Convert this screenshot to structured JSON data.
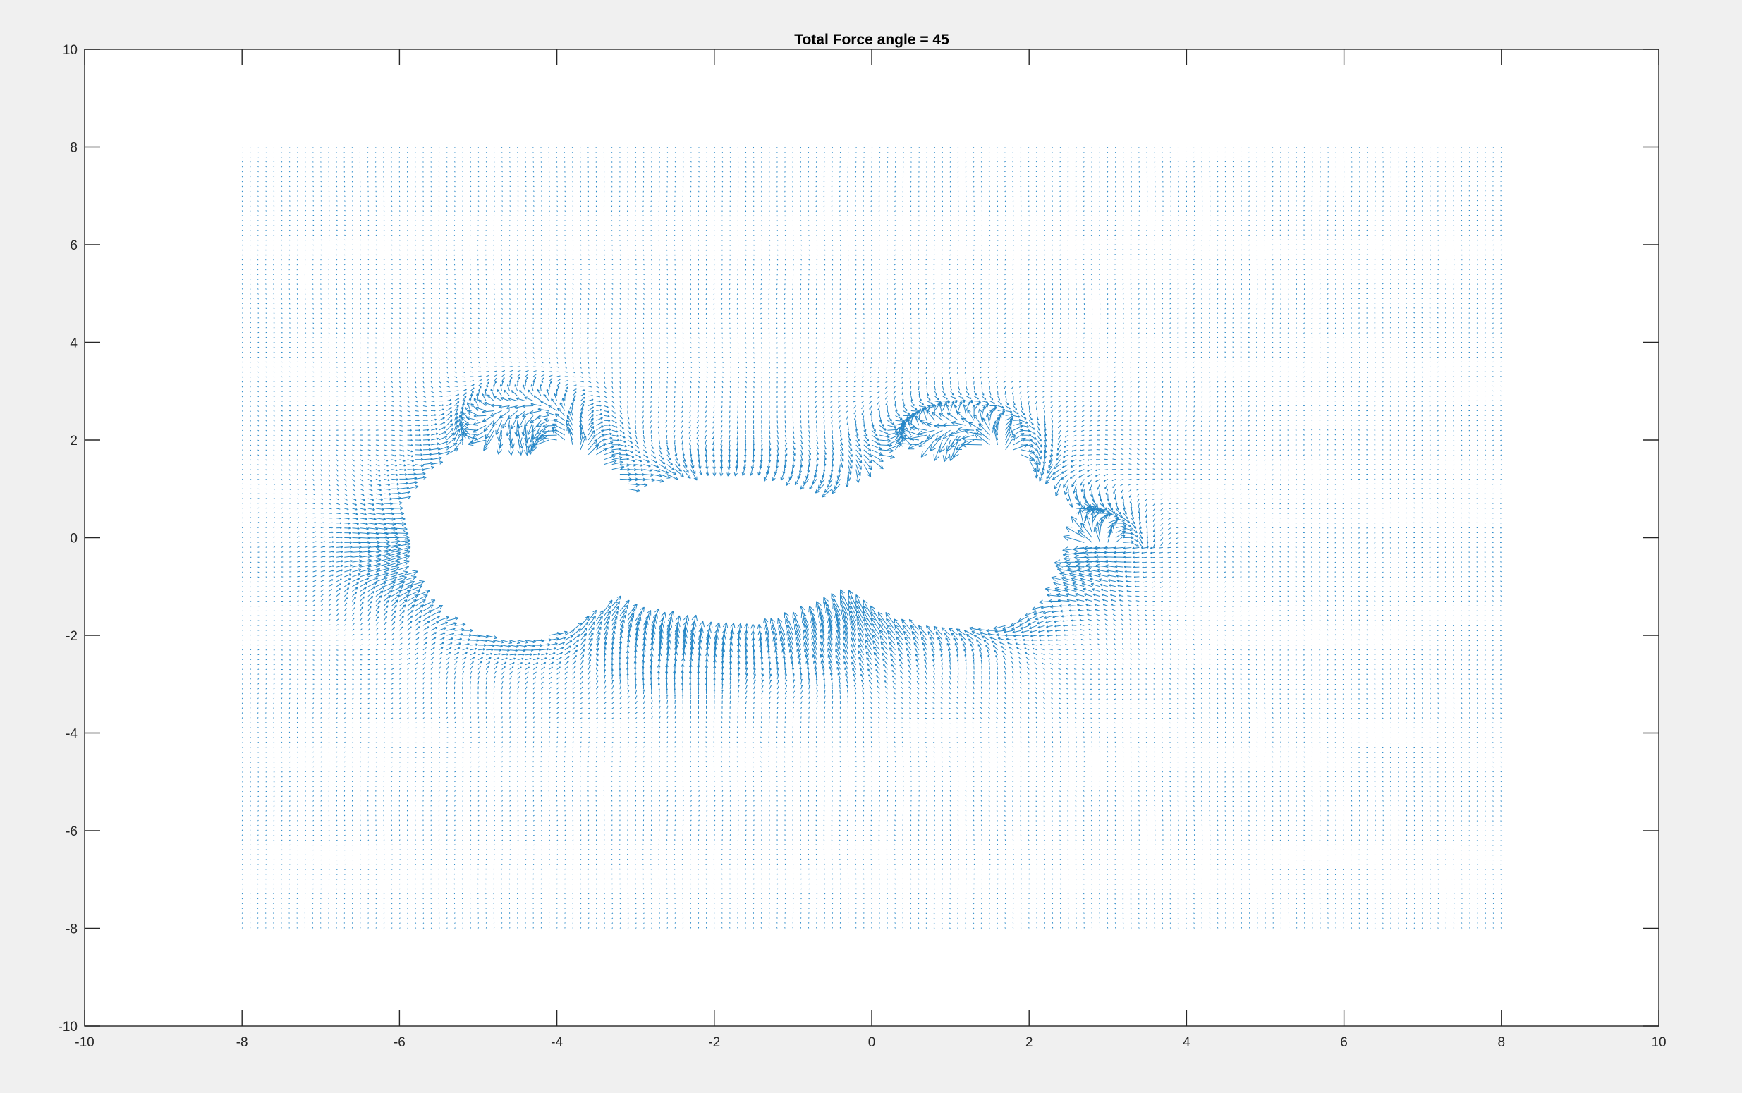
{
  "figure": {
    "background": "#f0f0f0",
    "axes_background": "#ffffff",
    "axis_color": "#262626"
  },
  "chart_data": {
    "type": "quiver",
    "title": "Total Force angle = 45",
    "xlabel": "",
    "ylabel": "",
    "xlim": [
      -10,
      10
    ],
    "ylim": [
      -10,
      10
    ],
    "xticks": [
      -10,
      -8,
      -6,
      -4,
      -2,
      0,
      2,
      4,
      6,
      8,
      10
    ],
    "yticks": [
      -10,
      -8,
      -6,
      -4,
      -2,
      0,
      2,
      4,
      6,
      8,
      10
    ],
    "xtick_labels": [
      "-10",
      "-8",
      "-6",
      "-4",
      "-2",
      "0",
      "2",
      "4",
      "6",
      "8",
      "10"
    ],
    "ytick_labels": [
      "-10",
      "-8",
      "-6",
      "-4",
      "-2",
      "0",
      "2",
      "4",
      "6",
      "8",
      "10"
    ],
    "grid": false,
    "legend": "none",
    "series": [
      {
        "color": "#0072bd",
        "field_extent": {
          "x": [
            -8,
            8
          ],
          "y": [
            -8,
            8
          ]
        },
        "grid_spacing": 0.1,
        "obstacle_ellipses": [
          {
            "cx": -1.8,
            "cy": -0.3,
            "rx": 1.9,
            "ry": 1.75
          },
          {
            "cx": -4.5,
            "cy": 0.0,
            "rx": 1.6,
            "ry": 2.05
          },
          {
            "cx": 1.0,
            "cy": 0.0,
            "rx": 1.65,
            "ry": 1.95
          }
        ],
        "boundary_peaks": [
          {
            "x": -6.0,
            "y": -0.5,
            "angle_deg": 20
          },
          {
            "x": 2.5,
            "y": -0.2,
            "angle_deg": 190
          },
          {
            "x": -2.5,
            "y": -2.3,
            "angle_deg": 80
          },
          {
            "x": -0.5,
            "y": -2.1,
            "angle_deg": 100
          },
          {
            "x": -4.5,
            "y": 2.2,
            "angle_deg": 285
          },
          {
            "x": 1.0,
            "y": 1.9,
            "angle_deg": 260
          }
        ]
      }
    ]
  }
}
